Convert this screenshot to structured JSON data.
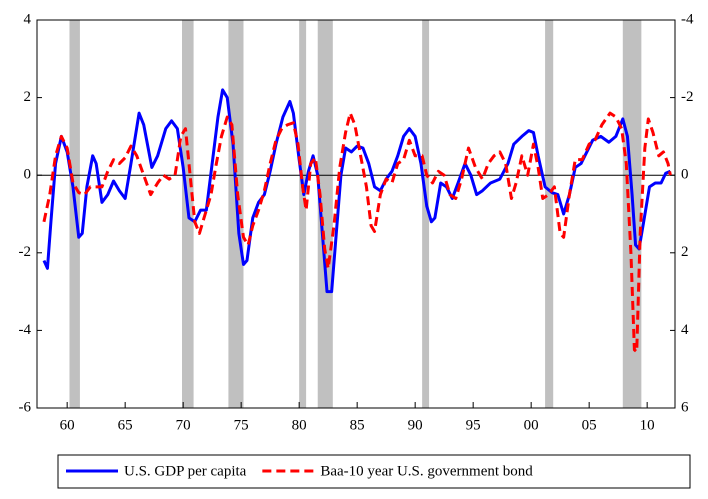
{
  "chart_data": {
    "type": "line",
    "xlim": [
      1957.4,
      2012.4
    ],
    "xticks": [
      {
        "value": 1960,
        "label": "60"
      },
      {
        "value": 1965,
        "label": "65"
      },
      {
        "value": 1970,
        "label": "70"
      },
      {
        "value": 1975,
        "label": "75"
      },
      {
        "value": 1980,
        "label": "80"
      },
      {
        "value": 1985,
        "label": "85"
      },
      {
        "value": 1990,
        "label": "90"
      },
      {
        "value": 1995,
        "label": "95"
      },
      {
        "value": 2000,
        "label": "00"
      },
      {
        "value": 2005,
        "label": "05"
      },
      {
        "value": 2010,
        "label": "10"
      }
    ],
    "ylim": [
      -6,
      4
    ],
    "yticks": [
      -6,
      -4,
      -2,
      0,
      2,
      4
    ],
    "y2lim": [
      6,
      -4
    ],
    "y2ticks": [
      -4,
      -2,
      0,
      2,
      4,
      6
    ],
    "shade_color": "#c0c0c0",
    "shaded_periods": [
      [
        1960.2,
        1961.1
      ],
      [
        1969.9,
        1970.9
      ],
      [
        1973.9,
        1975.2
      ],
      [
        1980.0,
        1980.6
      ],
      [
        1981.6,
        1982.9
      ],
      [
        1990.6,
        1991.2
      ],
      [
        2001.2,
        2001.9
      ],
      [
        2007.9,
        2009.5
      ]
    ],
    "series": [
      {
        "name": "U.S. GDP per capita",
        "color": "#0000ff",
        "dash": false,
        "x": [
          1958.0,
          1958.3,
          1958.6,
          1959.0,
          1959.5,
          1960.0,
          1960.5,
          1961.0,
          1961.3,
          1961.7,
          1962.2,
          1962.5,
          1963.0,
          1963.5,
          1964.0,
          1964.5,
          1965.0,
          1965.5,
          1966.2,
          1966.6,
          1967.3,
          1967.8,
          1968.5,
          1969.0,
          1969.5,
          1970.0,
          1970.5,
          1971.0,
          1971.5,
          1972.0,
          1972.5,
          1973.0,
          1973.4,
          1973.8,
          1974.3,
          1974.8,
          1975.2,
          1975.5,
          1976.0,
          1976.5,
          1977.0,
          1977.5,
          1978.0,
          1978.6,
          1979.2,
          1979.5,
          1980.0,
          1980.4,
          1980.8,
          1981.2,
          1981.6,
          1982.0,
          1982.4,
          1982.8,
          1983.2,
          1983.6,
          1984.0,
          1984.5,
          1985.0,
          1985.5,
          1986.0,
          1986.5,
          1987.0,
          1987.5,
          1988.0,
          1988.5,
          1989.0,
          1989.5,
          1990.0,
          1990.5,
          1991.0,
          1991.4,
          1991.7,
          1992.2,
          1992.7,
          1993.2,
          1993.7,
          1994.3,
          1994.8,
          1995.3,
          1995.8,
          1996.5,
          1997.3,
          1998.0,
          1998.5,
          1999.2,
          1999.8,
          2000.2,
          2000.6,
          2001.2,
          2001.8,
          2002.3,
          2002.8,
          2003.3,
          2003.8,
          2004.3,
          2004.8,
          2005.3,
          2006.0,
          2006.7,
          2007.3,
          2007.9,
          2008.3,
          2008.7,
          2009.0,
          2009.3,
          2009.7,
          2010.2,
          2010.7,
          2011.2,
          2011.6,
          2012.0
        ],
        "values": [
          -2.2,
          -2.4,
          -1.2,
          0.3,
          1.0,
          0.6,
          -0.3,
          -1.6,
          -1.5,
          -0.3,
          0.5,
          0.3,
          -0.7,
          -0.5,
          -0.15,
          -0.4,
          -0.6,
          0.3,
          1.6,
          1.3,
          0.2,
          0.5,
          1.2,
          1.4,
          1.2,
          0.2,
          -1.1,
          -1.2,
          -0.9,
          -0.9,
          0.3,
          1.5,
          2.2,
          2.0,
          0.8,
          -1.5,
          -2.3,
          -2.2,
          -1.1,
          -0.7,
          -0.5,
          0.1,
          0.8,
          1.5,
          1.9,
          1.6,
          0.4,
          -0.5,
          0.1,
          0.5,
          0.0,
          -1.5,
          -3.0,
          -3.0,
          -1.5,
          0.0,
          0.7,
          0.6,
          0.75,
          0.7,
          0.3,
          -0.3,
          -0.4,
          -0.1,
          0.1,
          0.5,
          1.0,
          1.2,
          1.0,
          0.3,
          -0.8,
          -1.2,
          -1.1,
          -0.2,
          -0.3,
          -0.6,
          -0.2,
          0.3,
          0.0,
          -0.5,
          -0.4,
          -0.2,
          -0.1,
          0.3,
          0.8,
          1.0,
          1.15,
          1.1,
          0.5,
          -0.3,
          -0.45,
          -0.5,
          -1.0,
          -0.5,
          0.2,
          0.3,
          0.6,
          0.9,
          1.0,
          0.85,
          1.0,
          1.45,
          1.0,
          -0.5,
          -1.8,
          -1.9,
          -1.2,
          -0.3,
          -0.2,
          -0.2,
          0.05,
          0.1
        ]
      },
      {
        "name": "Baa-10 year U.S. government bond",
        "color": "#ff0000",
        "dash": true,
        "axis": "y2",
        "x": [
          1958.0,
          1958.5,
          1959.0,
          1959.5,
          1960.0,
          1960.5,
          1961.0,
          1961.5,
          1962.0,
          1962.5,
          1963.0,
          1963.5,
          1964.0,
          1964.5,
          1965.0,
          1965.5,
          1966.0,
          1966.6,
          1967.2,
          1967.8,
          1968.3,
          1968.8,
          1969.3,
          1969.8,
          1970.2,
          1970.6,
          1971.0,
          1971.4,
          1971.9,
          1972.4,
          1972.8,
          1973.3,
          1973.8,
          1974.2,
          1974.7,
          1975.2,
          1975.6,
          1976.0,
          1976.5,
          1977.0,
          1977.5,
          1978.0,
          1978.5,
          1979.0,
          1979.5,
          1979.9,
          1980.3,
          1980.6,
          1981.0,
          1981.4,
          1981.8,
          1982.2,
          1982.5,
          1983.0,
          1983.5,
          1984.0,
          1984.4,
          1984.8,
          1985.3,
          1985.8,
          1986.2,
          1986.5,
          1987.0,
          1987.5,
          1988.0,
          1988.5,
          1989.0,
          1989.5,
          1990.0,
          1990.6,
          1991.0,
          1991.5,
          1992.0,
          1992.5,
          1993.0,
          1993.5,
          1994.0,
          1994.6,
          1995.2,
          1995.8,
          1996.3,
          1996.8,
          1997.3,
          1997.8,
          1998.3,
          1998.7,
          1999.2,
          1999.7,
          2000.2,
          2000.6,
          2001.0,
          2001.5,
          2002.0,
          2002.5,
          2002.8,
          2003.3,
          2003.8,
          2004.4,
          2005.0,
          2005.5,
          2006.1,
          2006.8,
          2007.3,
          2007.8,
          2008.2,
          2008.6,
          2008.9,
          2009.1,
          2009.4,
          2009.8,
          2010.1,
          2010.5,
          2011.0,
          2011.4,
          2011.8,
          2012.0
        ],
        "values": [
          1.2,
          0.5,
          -0.5,
          -1.0,
          -0.7,
          0.2,
          0.45,
          0.5,
          0.3,
          0.3,
          0.3,
          -0.1,
          -0.4,
          -0.3,
          -0.45,
          -0.75,
          -0.5,
          0.0,
          0.5,
          0.2,
          0.0,
          0.1,
          0.0,
          -1.0,
          -1.2,
          0.0,
          1.2,
          1.5,
          1.0,
          0.5,
          -0.2,
          -1.0,
          -1.5,
          -1.3,
          0.5,
          1.6,
          1.8,
          1.3,
          0.9,
          0.4,
          -0.3,
          -0.9,
          -1.2,
          -1.3,
          -1.35,
          -0.8,
          0.3,
          0.9,
          -0.3,
          -0.45,
          0.5,
          1.9,
          2.4,
          1.3,
          -0.2,
          -1.1,
          -1.6,
          -1.3,
          -0.5,
          0.3,
          1.3,
          1.45,
          0.5,
          0.1,
          0.2,
          -0.3,
          -0.4,
          -0.9,
          -0.5,
          -0.5,
          0.0,
          0.2,
          -0.1,
          0.0,
          0.5,
          0.6,
          0.1,
          -0.7,
          -0.2,
          0.1,
          -0.3,
          -0.5,
          -0.6,
          -0.3,
          0.6,
          0.2,
          -0.5,
          0.0,
          -0.8,
          -0.2,
          0.6,
          0.5,
          0.3,
          1.5,
          1.6,
          0.5,
          -0.4,
          -0.4,
          -0.8,
          -0.9,
          -1.3,
          -1.6,
          -1.5,
          -1.2,
          -0.3,
          2.0,
          4.5,
          4.55,
          1.5,
          -0.7,
          -1.45,
          -1.1,
          -0.5,
          -0.6,
          -0.3,
          0.0
        ]
      }
    ]
  }
}
